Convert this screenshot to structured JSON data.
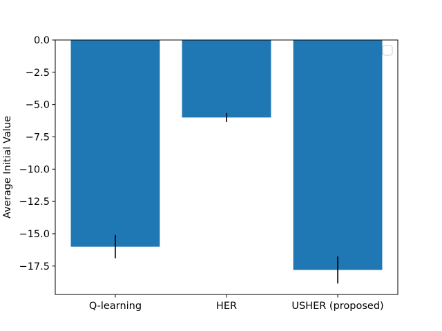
{
  "chart_data": {
    "type": "bar",
    "title": "",
    "xlabel": "",
    "ylabel": "Average Initial Value",
    "categories": [
      "Q-learning",
      "HER",
      "USHER (proposed)"
    ],
    "values": [
      -16.0,
      -6.0,
      -17.8
    ],
    "errors": [
      0.9,
      0.35,
      1.05
    ],
    "ylim": [
      -19.7,
      0.0
    ],
    "yticks": [
      0.0,
      -2.5,
      -5.0,
      -7.5,
      -10.0,
      -12.5,
      -15.0,
      -17.5
    ],
    "ytick_labels": [
      "0.0",
      "−2.5",
      "−5.0",
      "−7.5",
      "−10.0",
      "−12.5",
      "−15.0",
      "−17.5"
    ],
    "bar_color": "#1f77b4",
    "error_color": "#000000",
    "grid": false,
    "legend": {
      "placement": "top-right",
      "entries": []
    }
  }
}
